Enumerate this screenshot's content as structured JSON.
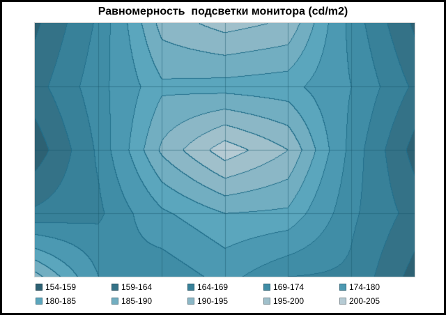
{
  "window": {
    "background": "#ffffff",
    "border_color": "#000000"
  },
  "title": "Равномерность  подсветки монитора (cd/m2)",
  "chart_data": {
    "type": "heatmap",
    "subtype": "contour-surface-top-view",
    "title": "Равномерность  подсветки монитора (cd/m2)",
    "unit": "cd/m2",
    "grid_columns": 7,
    "grid_rows": 5,
    "values": [
      [
        158,
        170,
        192,
        197,
        194,
        172,
        158
      ],
      [
        162,
        172,
        184,
        183,
        182,
        174,
        163
      ],
      [
        156,
        170,
        191,
        203,
        195,
        172,
        157
      ],
      [
        165,
        168,
        179,
        185,
        184,
        170,
        162
      ],
      [
        192,
        174,
        170,
        176,
        169,
        168,
        157
      ]
    ],
    "band_thresholds": [
      154,
      159,
      164,
      169,
      174,
      180,
      185,
      190,
      195,
      200,
      205
    ],
    "bands": [
      {
        "label": "154-159",
        "color": "#2d6173"
      },
      {
        "label": "159-164",
        "color": "#347287"
      },
      {
        "label": "164-169",
        "color": "#388199"
      },
      {
        "label": "169-174",
        "color": "#408da6"
      },
      {
        "label": "174-180",
        "color": "#4c99b2"
      },
      {
        "label": "180-185",
        "color": "#5ba6bd"
      },
      {
        "label": "185-190",
        "color": "#72aec1"
      },
      {
        "label": "190-195",
        "color": "#8bb7c6"
      },
      {
        "label": "195-200",
        "color": "#a0c0cb"
      },
      {
        "label": "200-205",
        "color": "#b6cbd4"
      }
    ],
    "contour_line_color": "#226f8b",
    "gridline_color": "rgba(23,84,104,0.45)",
    "plot_border_color": "#d2d2d2",
    "legend_position": "bottom",
    "legend_rows": 2,
    "axes": {
      "x_tick_labels": [],
      "y_tick_labels": [],
      "grid": "on"
    }
  }
}
